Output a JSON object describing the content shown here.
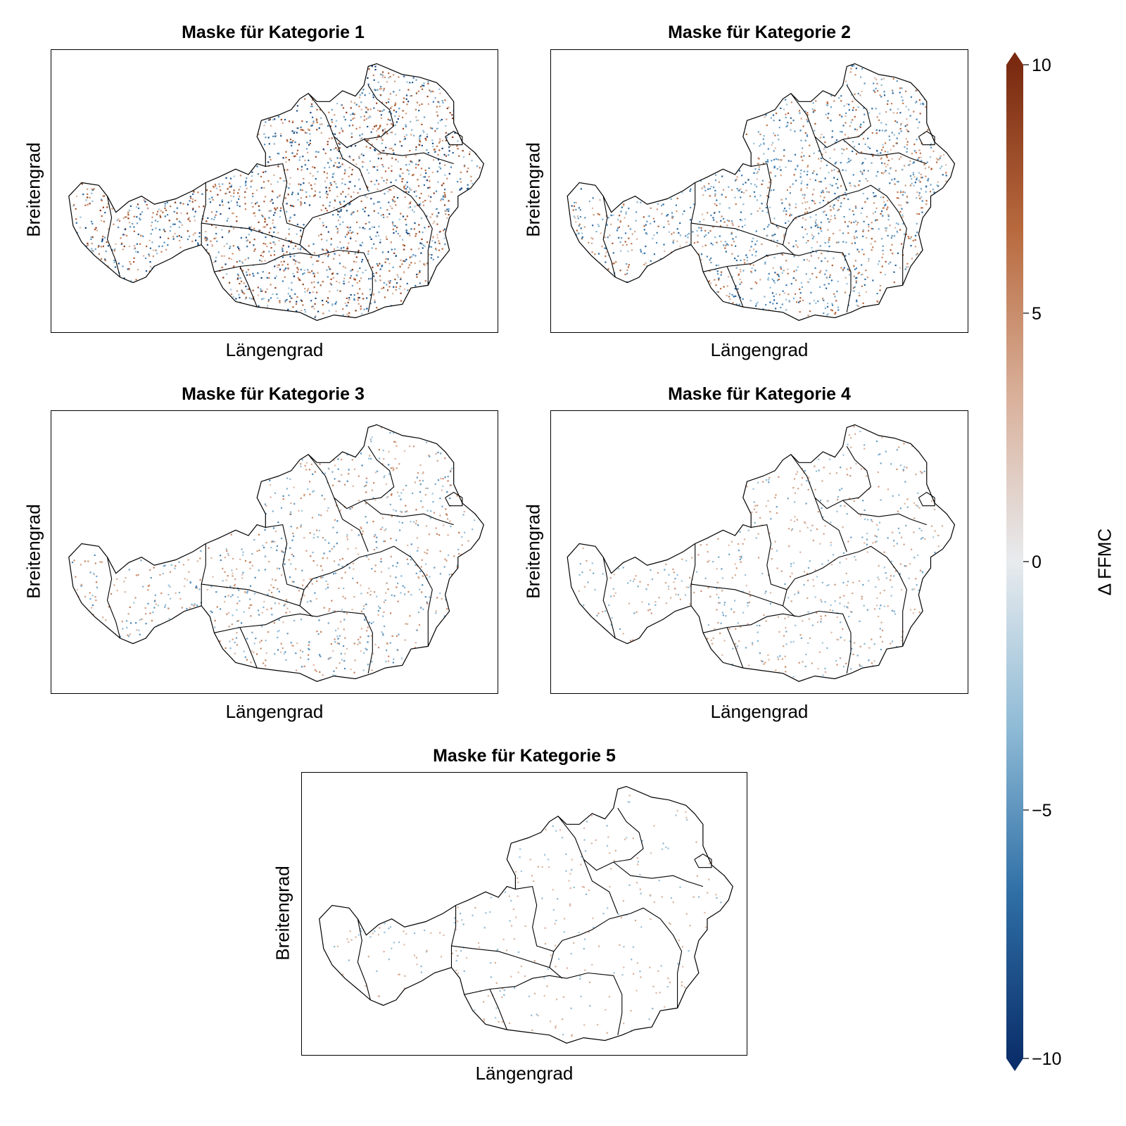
{
  "panels": [
    {
      "title": "Maske für Kategorie 1",
      "xlabel": "Längengrad",
      "ylabel": "Breitengrad",
      "density": 0.95,
      "posbias": 0.5
    },
    {
      "title": "Maske für Kategorie 2",
      "xlabel": "Längengrad",
      "ylabel": "Breitengrad",
      "density": 0.7,
      "posbias": 0.45
    },
    {
      "title": "Maske für Kategorie 3",
      "xlabel": "Längengrad",
      "ylabel": "Breitengrad",
      "density": 0.45,
      "posbias": 0.5
    },
    {
      "title": "Maske für Kategorie 4",
      "xlabel": "Längengrad",
      "ylabel": "Breitengrad",
      "density": 0.3,
      "posbias": 0.55
    },
    {
      "title": "Maske für Kategorie 5",
      "xlabel": "Längengrad",
      "ylabel": "Breitengrad",
      "density": 0.15,
      "posbias": 0.55
    }
  ],
  "colorbar": {
    "label": "Δ FFMC",
    "min": -10,
    "max": 10,
    "ticks": [
      10,
      5,
      0,
      -5,
      -10
    ],
    "tick_labels": [
      "10",
      "5",
      "0",
      "−5",
      "−10"
    ],
    "colors": [
      "#0b2f6b",
      "#2f6fa6",
      "#8fbbd6",
      "#e8ebee",
      "#d9b09a",
      "#b86a3e",
      "#7a2a10"
    ],
    "extend": "both",
    "cmap": "vik (blue-white-orange diverging)"
  }
}
